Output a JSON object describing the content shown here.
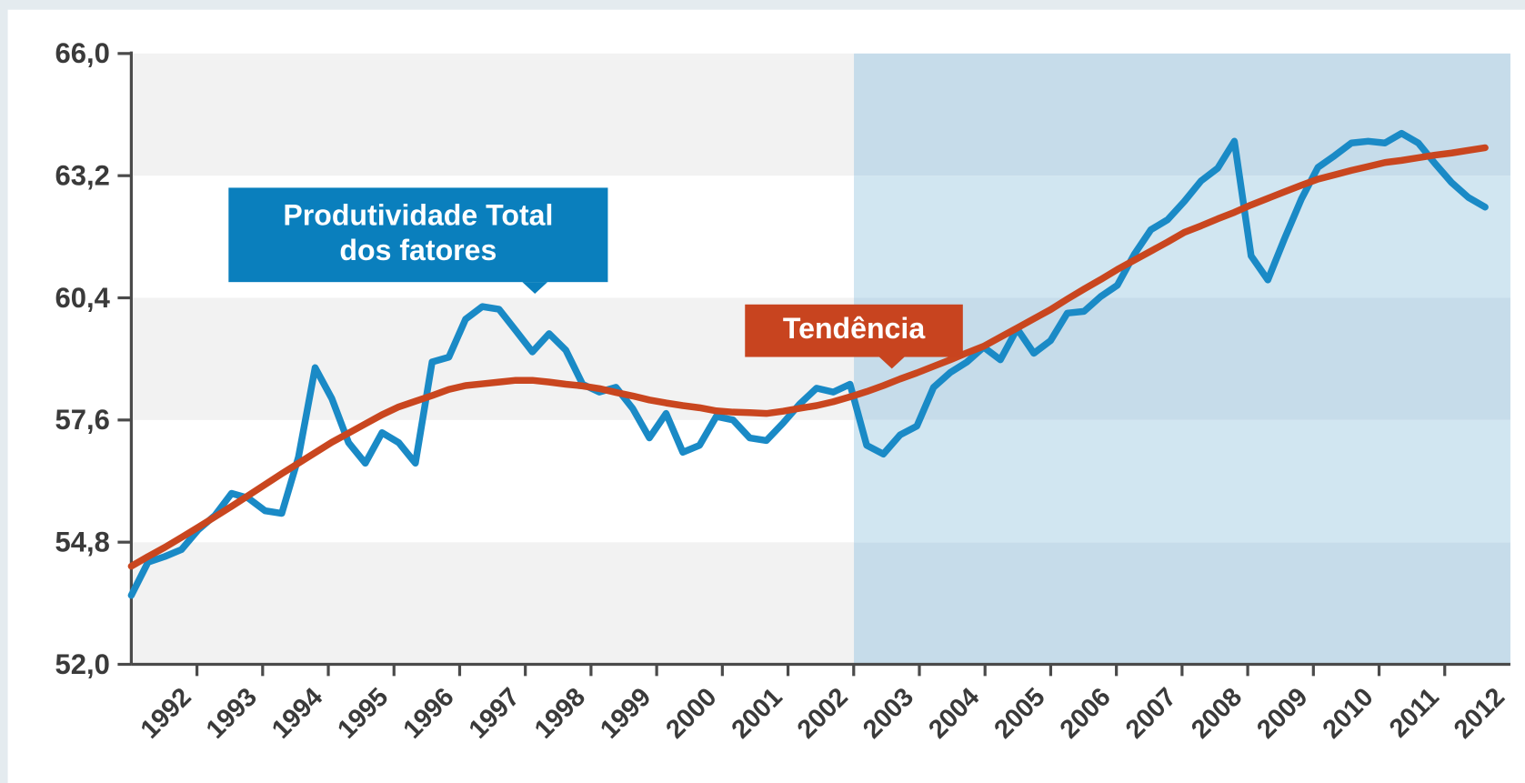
{
  "chart_data": {
    "type": "line",
    "categories": [
      "1992",
      null,
      null,
      null,
      "1993",
      null,
      null,
      null,
      "1994",
      null,
      null,
      null,
      "1995",
      null,
      null,
      null,
      "1996",
      null,
      null,
      null,
      "1997",
      null,
      null,
      null,
      "1998",
      null,
      null,
      null,
      "1999",
      null,
      null,
      null,
      "2000",
      null,
      null,
      null,
      "2001",
      null,
      null,
      null,
      "2002",
      null,
      null,
      null,
      "2003",
      null,
      null,
      null,
      "2004",
      null,
      null,
      null,
      "2005",
      null,
      null,
      null,
      "2006",
      null,
      null,
      null,
      "2007",
      null,
      null,
      null,
      "2008",
      null,
      null,
      null,
      "2009",
      null,
      null,
      null,
      "2010",
      null,
      null,
      null,
      "2011",
      null,
      null,
      null,
      "2012",
      null
    ],
    "series": [
      {
        "name": "Produtividade Total dos fatores",
        "color": "#1a8ac6",
        "values": [
          53.58,
          54.34,
          54.47,
          54.63,
          55.08,
          55.41,
          55.92,
          55.81,
          55.52,
          55.46,
          56.75,
          58.8,
          58.09,
          57.08,
          56.61,
          57.31,
          57.08,
          56.61,
          58.93,
          59.04,
          59.91,
          60.2,
          60.14,
          59.65,
          59.16,
          59.58,
          59.2,
          58.42,
          58.24,
          58.35,
          57.86,
          57.19,
          57.75,
          56.86,
          57.02,
          57.68,
          57.6,
          57.19,
          57.13,
          57.53,
          57.97,
          58.33,
          58.24,
          58.42,
          57.02,
          56.82,
          57.26,
          57.46,
          58.35,
          58.69,
          58.93,
          59.27,
          58.98,
          59.69,
          59.13,
          59.42,
          60.05,
          60.09,
          60.43,
          60.69,
          61.39,
          61.96,
          62.19,
          62.61,
          63.08,
          63.37,
          63.99,
          61.36,
          60.81,
          61.76,
          62.66,
          63.39,
          63.66,
          63.95,
          63.99,
          63.95,
          64.17,
          63.95,
          63.48,
          63.04,
          62.7,
          62.48
        ]
      },
      {
        "name": "Tendência",
        "color": "#c9461f",
        "values": [
          54.25,
          54.47,
          54.68,
          54.91,
          55.14,
          55.38,
          55.62,
          55.87,
          56.12,
          56.37,
          56.61,
          56.85,
          57.09,
          57.3,
          57.51,
          57.72,
          57.9,
          58.03,
          58.16,
          58.3,
          58.39,
          58.43,
          58.47,
          58.51,
          58.51,
          58.47,
          58.42,
          58.38,
          58.32,
          58.23,
          58.15,
          58.06,
          57.99,
          57.93,
          57.88,
          57.81,
          57.78,
          57.77,
          57.75,
          57.8,
          57.87,
          57.93,
          58.02,
          58.13,
          58.25,
          58.39,
          58.54,
          58.68,
          58.83,
          58.98,
          59.14,
          59.29,
          59.5,
          59.71,
          59.92,
          60.13,
          60.37,
          60.6,
          60.82,
          61.05,
          61.26,
          61.47,
          61.68,
          61.9,
          62.05,
          62.21,
          62.36,
          62.53,
          62.68,
          62.83,
          62.98,
          63.12,
          63.22,
          63.32,
          63.41,
          63.5,
          63.55,
          63.61,
          63.67,
          63.72,
          63.78,
          63.84
        ]
      }
    ],
    "annotations": [
      {
        "lines": [
          "Produtividade Total",
          "dos fatores"
        ],
        "color": "#0a7fbd"
      },
      {
        "lines": [
          "Tendência"
        ],
        "color": "#c8441f"
      }
    ],
    "ylim": [
      52.0,
      66.0
    ],
    "yticks": [
      {
        "value": 52.0,
        "label": "52,0"
      },
      {
        "value": 54.8,
        "label": "54,8"
      },
      {
        "value": 57.6,
        "label": "57,6"
      },
      {
        "value": 60.4,
        "label": "60,4"
      },
      {
        "value": 63.2,
        "label": "63,2"
      },
      {
        "value": 66.0,
        "label": "66,0"
      }
    ]
  }
}
